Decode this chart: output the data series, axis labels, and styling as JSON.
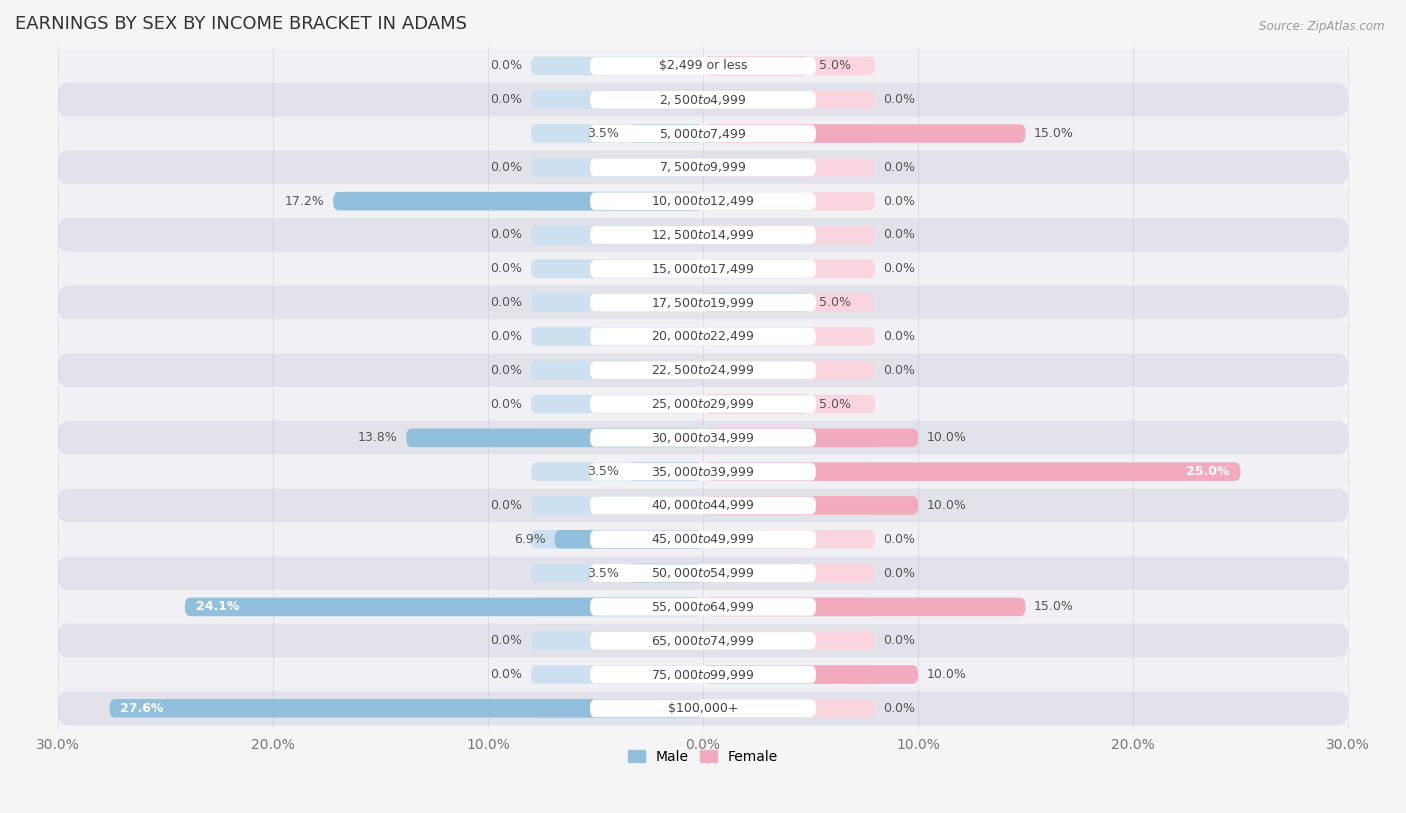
{
  "title": "EARNINGS BY SEX BY INCOME BRACKET IN ADAMS",
  "source": "Source: ZipAtlas.com",
  "categories": [
    "$2,499 or less",
    "$2,500 to $4,999",
    "$5,000 to $7,499",
    "$7,500 to $9,999",
    "$10,000 to $12,499",
    "$12,500 to $14,999",
    "$15,000 to $17,499",
    "$17,500 to $19,999",
    "$20,000 to $22,499",
    "$22,500 to $24,999",
    "$25,000 to $29,999",
    "$30,000 to $34,999",
    "$35,000 to $39,999",
    "$40,000 to $44,999",
    "$45,000 to $49,999",
    "$50,000 to $54,999",
    "$55,000 to $64,999",
    "$65,000 to $74,999",
    "$75,000 to $99,999",
    "$100,000+"
  ],
  "male_values": [
    0.0,
    0.0,
    3.5,
    0.0,
    17.2,
    0.0,
    0.0,
    0.0,
    0.0,
    0.0,
    0.0,
    13.8,
    3.5,
    0.0,
    6.9,
    3.5,
    24.1,
    0.0,
    0.0,
    27.6
  ],
  "female_values": [
    5.0,
    0.0,
    15.0,
    0.0,
    0.0,
    0.0,
    0.0,
    5.0,
    0.0,
    0.0,
    5.0,
    10.0,
    25.0,
    10.0,
    0.0,
    0.0,
    15.0,
    0.0,
    10.0,
    0.0
  ],
  "male_color": "#92bfdc",
  "female_color": "#f2abbe",
  "male_placeholder_color": "#cce0ef",
  "female_placeholder_color": "#fad5e0",
  "xlim": 30.0,
  "row_odd_color": "#f0f0f5",
  "row_even_color": "#e2e2ea",
  "label_bg_color": "#ffffff",
  "title_fontsize": 13,
  "axis_fontsize": 10,
  "label_fontsize": 9,
  "value_fontsize": 9
}
